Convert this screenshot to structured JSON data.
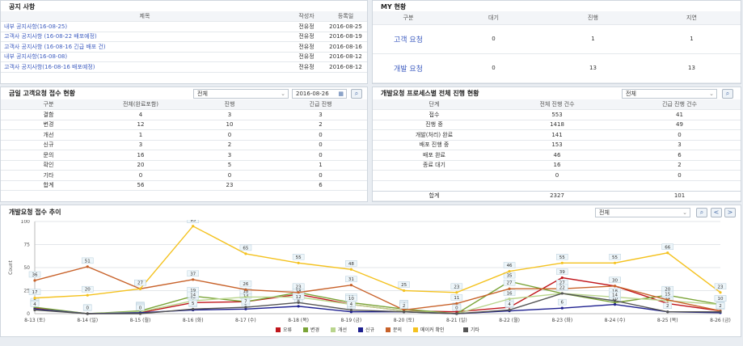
{
  "notice": {
    "title": "공지 사항",
    "headers": [
      "제목",
      "작성자",
      "등록일"
    ],
    "rows": [
      [
        "내부 공지사항(16-08-25)",
        "전유정",
        "2016-08-25"
      ],
      [
        "고객사 공지사항 (16-08-22 배포예정)",
        "전유정",
        "2016-08-19"
      ],
      [
        "고객사 공지사항 (16-08-16 긴급 배포 건)",
        "전유정",
        "2016-08-16"
      ],
      [
        "내부 공지사항(16-08-08)",
        "전유정",
        "2016-08-12"
      ],
      [
        "고객사 공지사항(16-08-16 배포예정)",
        "전유정",
        "2016-08-12"
      ]
    ]
  },
  "my": {
    "title": "MY 현황",
    "headers": [
      "구분",
      "대기",
      "진행",
      "지연"
    ],
    "rows": [
      [
        "고객 요청",
        "0",
        "1",
        "1"
      ],
      [
        "개발 요청",
        "0",
        "13",
        "13"
      ]
    ]
  },
  "daily": {
    "title": "금일 고객요청 접수 현황",
    "select": "전체",
    "date": "2016-08-26",
    "headers": [
      "구분",
      "전체(완료포함)",
      "진행",
      "긴급 진행"
    ],
    "rows": [
      [
        "결함",
        "4",
        "3",
        "3"
      ],
      [
        "변경",
        "12",
        "10",
        "2"
      ],
      [
        "개선",
        "1",
        "0",
        "0"
      ],
      [
        "신규",
        "3",
        "2",
        "0"
      ],
      [
        "문의",
        "16",
        "3",
        "0"
      ],
      [
        "확인",
        "20",
        "5",
        "1"
      ],
      [
        "기타",
        "0",
        "0",
        "0"
      ],
      [
        "합계",
        "56",
        "23",
        "6"
      ]
    ]
  },
  "process": {
    "title": "개발요청 프로세스별 전체 진행 현황",
    "select": "전체",
    "headers": [
      "단계",
      "전체 진행 건수",
      "긴급 진행 건수"
    ],
    "rows": [
      [
        "접수",
        "553",
        "41"
      ],
      [
        "진행 중",
        "1418",
        "49"
      ],
      [
        "개발(처리) 완료",
        "141",
        "0"
      ],
      [
        "배포 진행 중",
        "153",
        "3"
      ],
      [
        "배포 완료",
        "46",
        "6"
      ],
      [
        "종료 대기",
        "16",
        "2"
      ],
      [
        "",
        "0",
        "0"
      ]
    ],
    "total": [
      "합계",
      "2327",
      "101"
    ]
  },
  "trend": {
    "title": "개발요청 접수 추이",
    "select": "전체",
    "prev": "<",
    "next": ">"
  },
  "chart_data": {
    "type": "line",
    "ylabel": "Count",
    "ylim": [
      0,
      100
    ],
    "yticks": [
      "0",
      "25",
      "50",
      "75",
      "100"
    ],
    "categories": [
      "8-13 (토)",
      "8-14 (일)",
      "8-15 (월)",
      "8-16 (화)",
      "8-17 (수)",
      "8-18 (목)",
      "8-19 (금)",
      "8-20 (토)",
      "8-21 (일)",
      "8-22 (월)",
      "8-23 (화)",
      "8-24 (수)",
      "8-25 (목)",
      "8-26 (금)"
    ],
    "series": [
      {
        "name": "오류",
        "color": "#c0161c",
        "values": [
          6,
          0,
          1,
          12,
          13,
          21,
          10,
          3,
          2,
          7,
          39,
          30,
          11,
          3
        ]
      },
      {
        "name": "변경",
        "color": "#7aa437",
        "values": [
          7,
          0,
          3,
          19,
          13,
          23,
          12,
          5,
          0,
          35,
          22,
          12,
          20,
          10
        ]
      },
      {
        "name": "개선",
        "color": "#b9d58d",
        "values": [
          5,
          0,
          2,
          14,
          18,
          18,
          10,
          3,
          0,
          16,
          22,
          18,
          14,
          10
        ]
      },
      {
        "name": "신규",
        "color": "#1d1f8f",
        "values": [
          5,
          0,
          1,
          4,
          5,
          8,
          2,
          2,
          0,
          3,
          6,
          10,
          2,
          1
        ]
      },
      {
        "name": "문의",
        "color": "#c8622a",
        "values": [
          36,
          51,
          27,
          37,
          26,
          23,
          31,
          4,
          11,
          27,
          27,
          30,
          15,
          3
        ]
      },
      {
        "name": "메이커 확인",
        "color": "#f4c21f",
        "values": [
          17,
          20,
          27,
          95,
          65,
          55,
          48,
          25,
          23,
          46,
          55,
          55,
          66,
          23
        ]
      },
      {
        "name": "기타",
        "color": "#555555",
        "values": [
          4,
          0,
          0,
          5,
          7,
          12,
          4,
          2,
          0,
          4,
          22,
          14,
          2,
          2
        ]
      }
    ]
  }
}
